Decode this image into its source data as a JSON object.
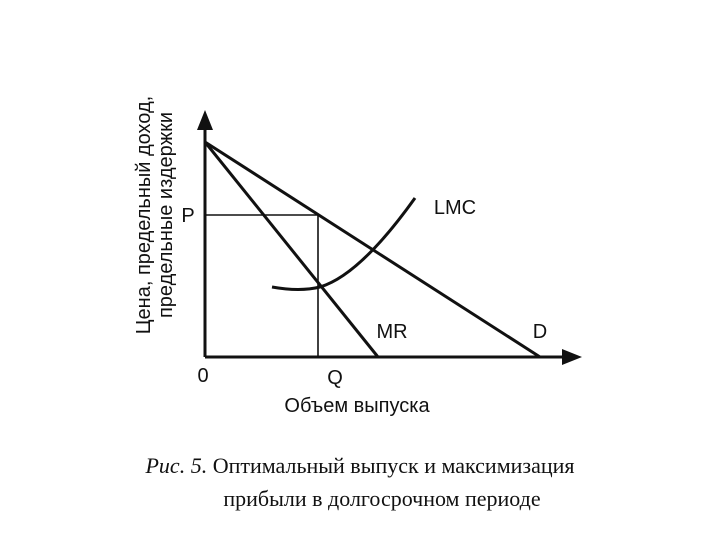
{
  "axes": {
    "y_label_line1": "Цена, предельный доход,",
    "y_label_line2": "предельные издержки",
    "x_label": "Объем выпуска",
    "origin": "0"
  },
  "labels": {
    "p": "P",
    "q": "Q",
    "mr": "MR",
    "d": "D",
    "lmc": "LMC"
  },
  "caption": {
    "figure": "Рис. 5.",
    "line1": "Оптимальный выпуск и максимизация",
    "line2": "прибыли в долгосрочном периоде"
  }
}
